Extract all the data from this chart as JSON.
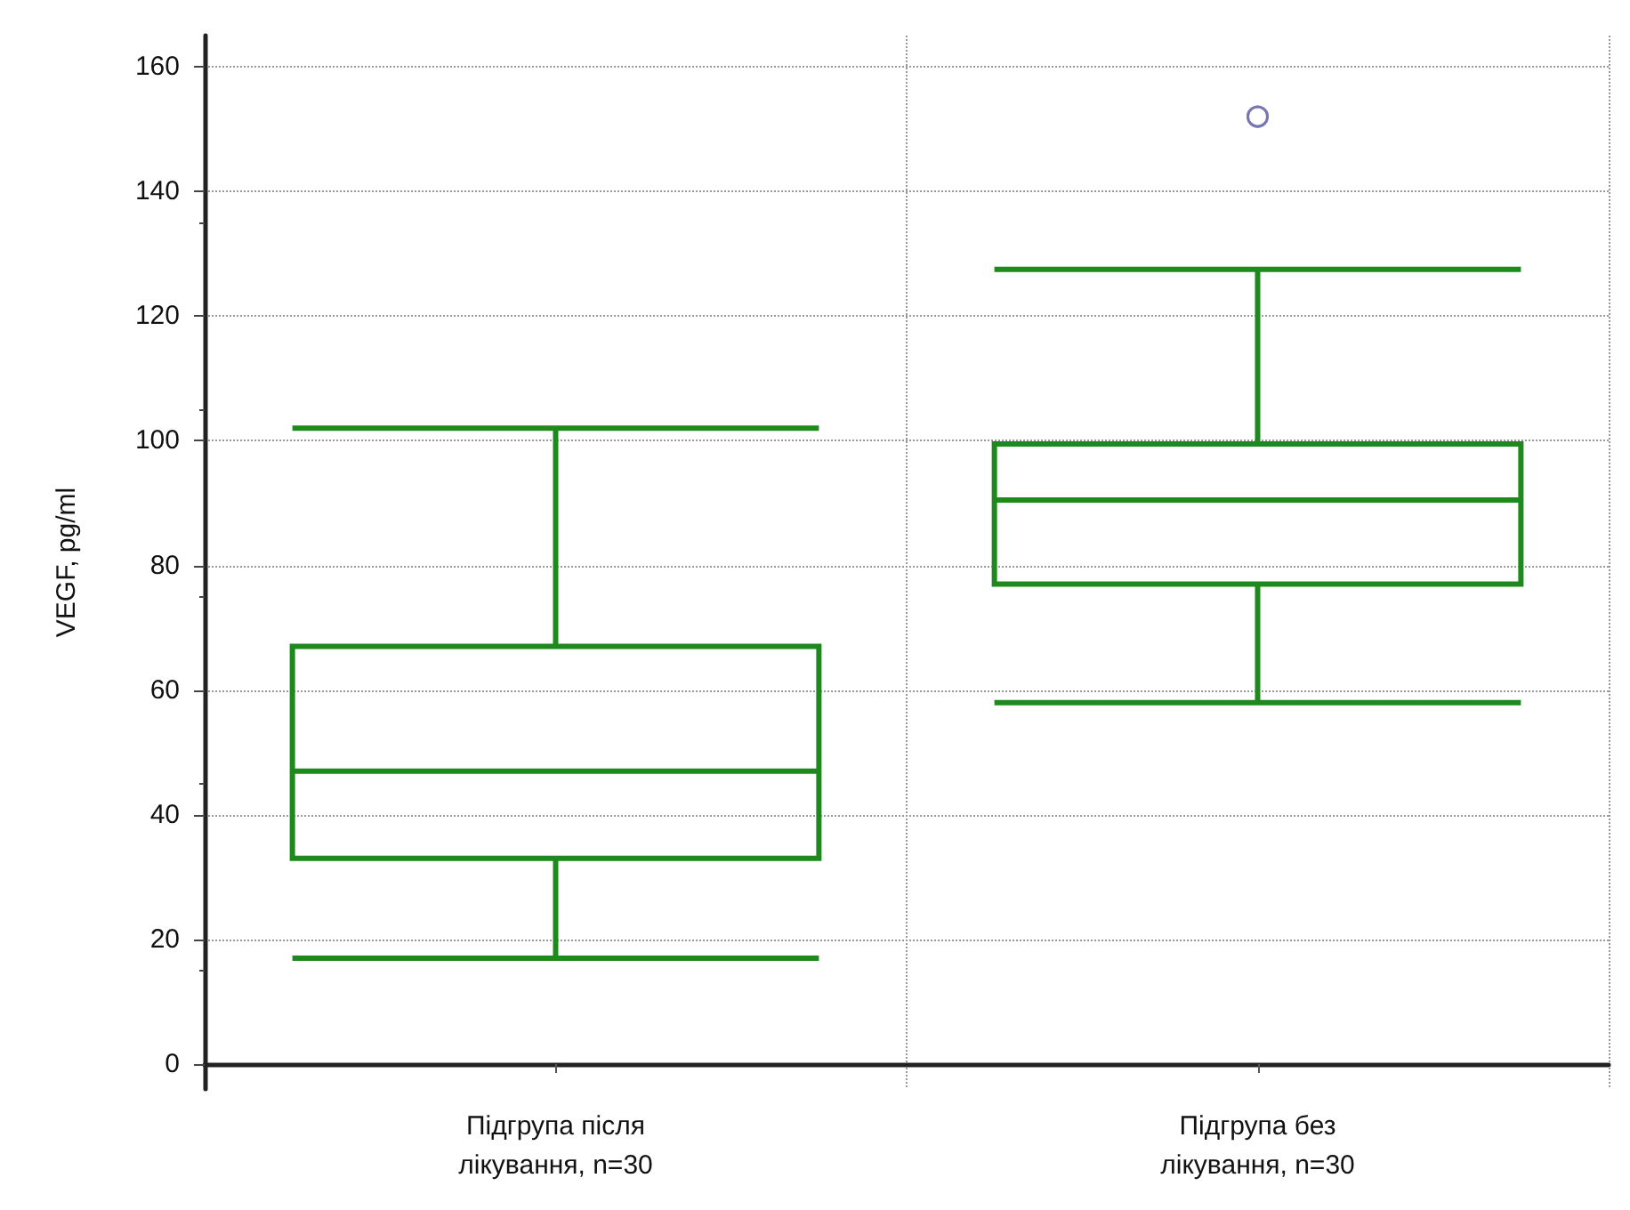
{
  "chart_data": {
    "type": "box",
    "ylabel": "VEGF, pg/ml",
    "categories": [
      "Підгрупа після\nлікування, n=30",
      "Підгрупа без\nлікування, n=30"
    ],
    "series": [
      {
        "color": "#1e8a1e",
        "boxes": [
          {
            "low": 17,
            "q1": 33,
            "median": 47,
            "q3": 67,
            "high": 102
          },
          {
            "low": 58,
            "q1": 77,
            "median": 90.5,
            "q3": 99.5,
            "high": 127.5,
            "outliers": [
              152,
              152
            ]
          }
        ]
      }
    ],
    "ylim": [
      -4,
      165
    ],
    "yticks": [
      0,
      20,
      40,
      60,
      80,
      100,
      120,
      140,
      160
    ],
    "grid": true
  }
}
